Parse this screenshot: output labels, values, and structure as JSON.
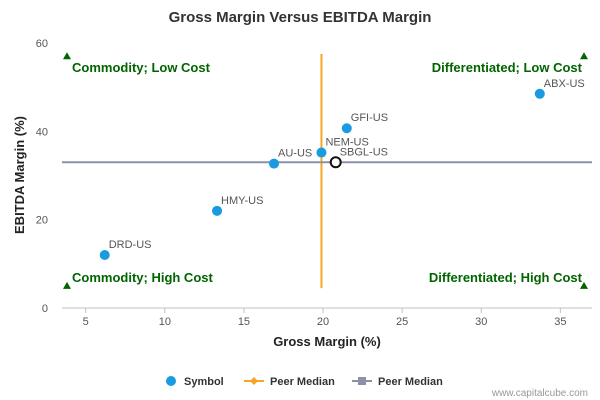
{
  "chart_data": {
    "type": "scatter",
    "title": "Gross Margin Versus EBITDA Margin",
    "xlabel": "Gross Margin (%)",
    "ylabel": "EBITDA Margin (%)",
    "xlim": [
      3.5,
      37
    ],
    "ylim": [
      0,
      60
    ],
    "x_ticks": [
      5,
      10,
      15,
      20,
      25,
      30,
      35
    ],
    "y_ticks": [
      0,
      20,
      40,
      60
    ],
    "grid": false,
    "series": [
      {
        "name": "Symbol",
        "color": "#1a9ae0",
        "points": [
          {
            "label": "DRD-US",
            "x": 6.2,
            "y": 12.0
          },
          {
            "label": "HMY-US",
            "x": 13.3,
            "y": 22.0
          },
          {
            "label": "AU-US",
            "x": 16.9,
            "y": 32.7
          },
          {
            "label": "NEM-US",
            "x": 19.9,
            "y": 35.2
          },
          {
            "label": "GFI-US",
            "x": 21.5,
            "y": 40.7
          },
          {
            "label": "ABX-US",
            "x": 33.7,
            "y": 48.5
          }
        ]
      }
    ],
    "highlight": {
      "label": "SBGL-US",
      "x": 20.8,
      "y": 33.0
    },
    "median_lines": [
      {
        "name": "Peer Median",
        "orientation": "vertical",
        "x": 19.9,
        "y_range": [
          4.5,
          57.5
        ],
        "color": "#f5a623"
      },
      {
        "name": "Peer Median",
        "orientation": "horizontal",
        "y": 33.0,
        "x_range": [
          3.5,
          37
        ],
        "color": "#8a91a8"
      }
    ],
    "quadrants": {
      "top_left": "Commodity; Low Cost",
      "top_right": "Differentiated; Low Cost",
      "bottom_left": "Commodity; High Cost",
      "bottom_right": "Differentiated; High Cost"
    },
    "legend": {
      "position": "bottom",
      "items": [
        "Symbol",
        "Peer Median",
        "Peer Median"
      ]
    },
    "credit": "www.capitalcube.com"
  }
}
